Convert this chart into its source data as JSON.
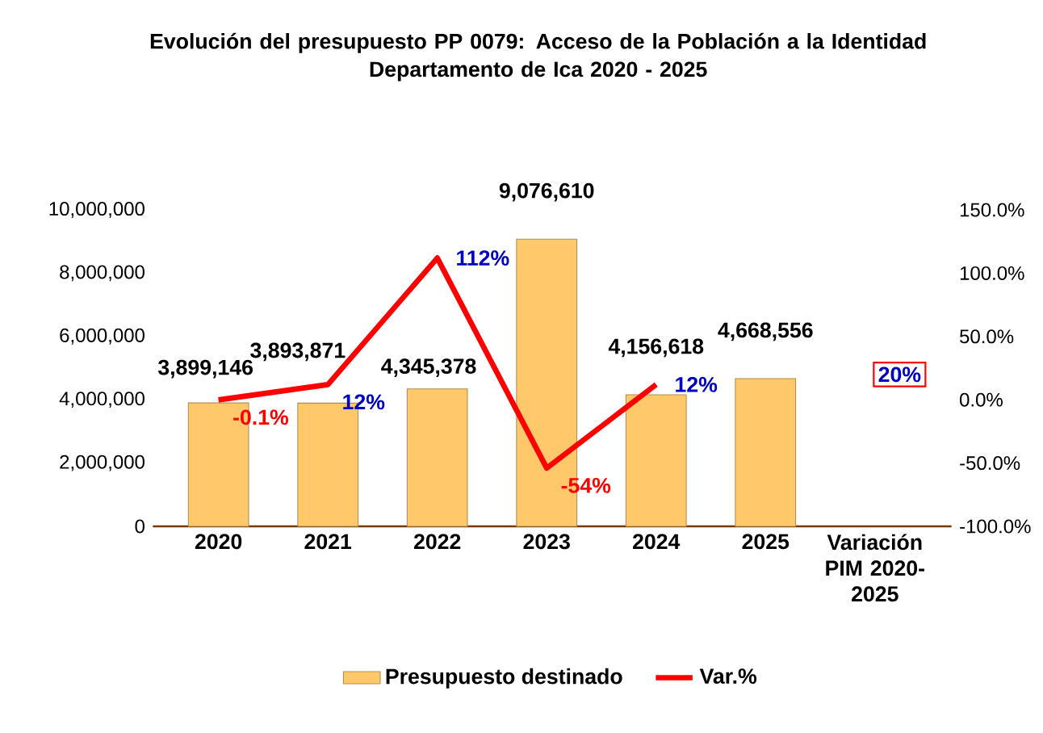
{
  "chart_data": {
    "type": "bar",
    "title": "Evolución del presupuesto PP 0079: Acceso de la Población a la Identidad\nDepartamento de Ica 2020 - 2025",
    "categories": [
      "2020",
      "2021",
      "2022",
      "2023",
      "2024",
      "2025",
      "Variación PIM 2020-2025"
    ],
    "series": [
      {
        "name": "Presupuesto destinado",
        "color": "#ffc96b",
        "values": [
          3899146,
          3893871,
          4345378,
          9076610,
          4156618,
          4668556,
          null
        ],
        "value_labels": [
          "3,899,146",
          "3,893,871",
          "4,345,378",
          "9,076,610",
          "4,156,618",
          "4,668,556",
          null
        ]
      },
      {
        "name": "Var.%",
        "type": "line",
        "axis": "y2",
        "color": "#ff0000",
        "values": [
          -0.1,
          12,
          112,
          -54,
          12,
          null,
          null
        ],
        "value_labels": [
          "-0.1%",
          "12%",
          "112%",
          "-54%",
          "12%",
          null,
          null
        ]
      }
    ],
    "ylim": [
      0,
      10000000
    ],
    "yticks": [
      0,
      {
        "value": 2000000,
        "label": "2,000,000"
      },
      {
        "value": 4000000,
        "label": "4,000,000"
      },
      {
        "value": 6000000,
        "label": "6,000,000"
      },
      {
        "value": 8000000,
        "label": "8,000,000"
      },
      {
        "value": 10000000,
        "label": "10,000,000"
      }
    ],
    "y2lim": [
      -100,
      150
    ],
    "y2ticks": [
      {
        "value": -100,
        "label": "-100.0%"
      },
      {
        "value": -50,
        "label": "-50.0%"
      },
      {
        "value": 0,
        "label": "0.0%"
      },
      {
        "value": 50,
        "label": "50.0%"
      },
      {
        "value": 100,
        "label": "100.0%"
      },
      {
        "value": 150,
        "label": "150.0%"
      }
    ],
    "annotations": [
      "20%"
    ],
    "legend": "bottom",
    "marker": "none",
    "line_style": "solid"
  }
}
